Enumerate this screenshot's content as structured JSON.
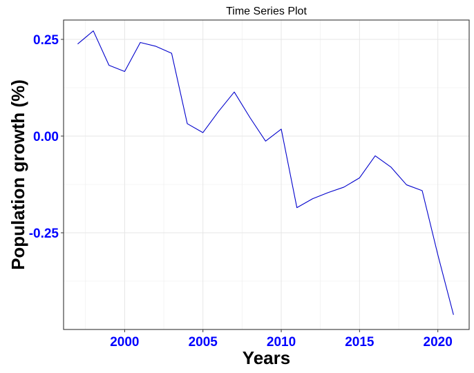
{
  "chart_data": {
    "type": "line",
    "title": "Time Series Plot",
    "xlabel": "Years",
    "ylabel": "Population growth (%)",
    "xlim": [
      1996.1,
      2022.0
    ],
    "ylim": [
      -0.5,
      0.3
    ],
    "x_ticks": [
      2000,
      2005,
      2010,
      2015,
      2020
    ],
    "y_ticks": [
      -0.25,
      0.0,
      0.25
    ],
    "y_tick_labels": [
      "-0.25",
      "0.00",
      "0.25"
    ],
    "x_minor_ticks": [
      1997.5,
      2002.5,
      2007.5,
      2012.5,
      2017.5
    ],
    "y_minor_ticks": [
      -0.375,
      -0.125,
      0.125
    ],
    "grid": true,
    "tick_label_color": "#0000ff",
    "series": [
      {
        "color": "#0000cc",
        "x": [
          1997,
          1998,
          1999,
          2000,
          2001,
          2002,
          2003,
          2004,
          2005,
          2006,
          2007,
          2008,
          2009,
          2010,
          2011,
          2012,
          2013,
          2014,
          2015,
          2016,
          2017,
          2018,
          2019,
          2020,
          2021
        ],
        "y": [
          0.238,
          0.272,
          0.183,
          0.167,
          0.242,
          0.232,
          0.214,
          0.032,
          0.009,
          0.064,
          0.114,
          0.048,
          -0.013,
          0.018,
          -0.185,
          -0.162,
          -0.146,
          -0.132,
          -0.108,
          -0.051,
          -0.08,
          -0.126,
          -0.141,
          -0.307,
          -0.462
        ]
      }
    ]
  }
}
